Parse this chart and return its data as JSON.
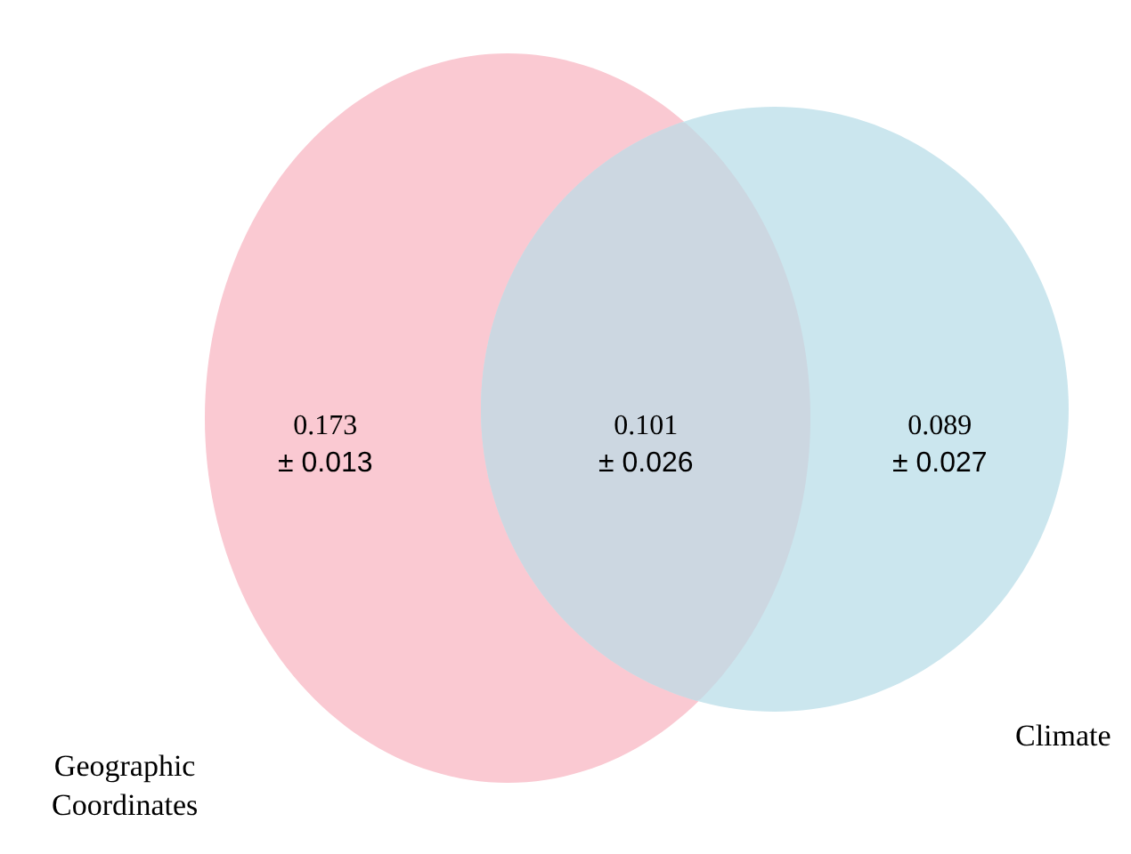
{
  "chart_data": {
    "type": "other",
    "categories": [
      null,
      null,
      null
    ],
    "values": [
      0.173,
      0.101,
      0.089
    ],
    "value_labels": [
      "0.173\n± 0.013",
      "0.101\n± 0.026",
      "0.089\n± 0.027"
    ],
    "colors": [
      "#fac9d2",
      "#ccd7e1",
      "#cbe6ee"
    ],
    "annotations": [
      "Geographic Coordinates",
      "Climate"
    ]
  }
}
